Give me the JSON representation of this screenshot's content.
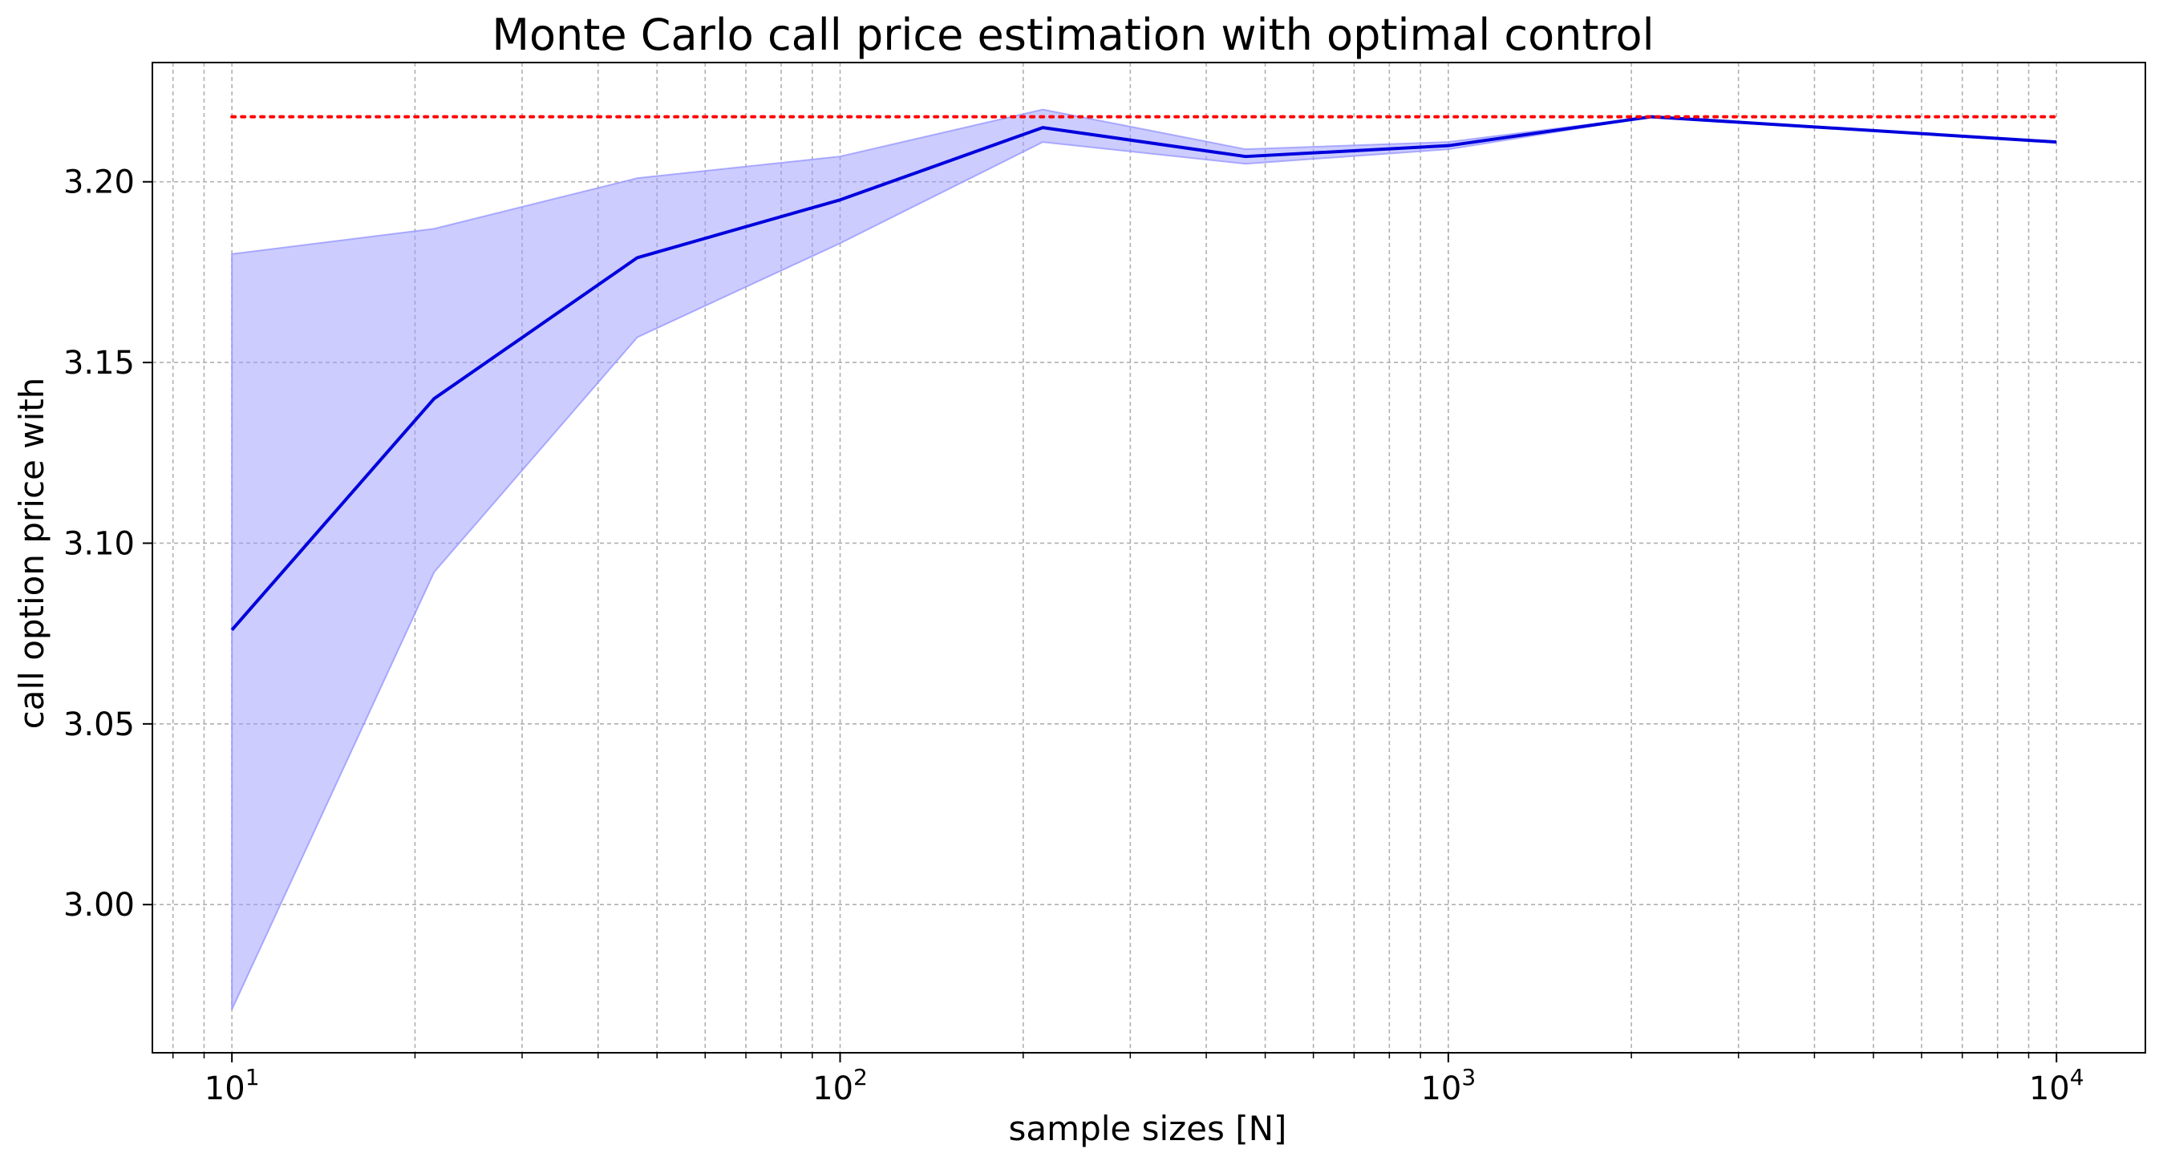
{
  "chart_data": {
    "type": "line",
    "title": "Monte Carlo call price estimation with optimal control",
    "xlabel": "sample sizes [N]",
    "ylabel": "call option price with",
    "x_scale": "log",
    "xlim": [
      7.4,
      14000
    ],
    "ylim": [
      2.959,
      3.233
    ],
    "x_ticks": [
      {
        "value": 10,
        "base": "10",
        "exp": "1"
      },
      {
        "value": 100,
        "base": "10",
        "exp": "2"
      },
      {
        "value": 1000,
        "base": "10",
        "exp": "3"
      },
      {
        "value": 10000,
        "base": "10",
        "exp": "4"
      }
    ],
    "y_ticks": [
      {
        "value": 3.0,
        "label": "3.00"
      },
      {
        "value": 3.05,
        "label": "3.05"
      },
      {
        "value": 3.1,
        "label": "3.10"
      },
      {
        "value": 3.15,
        "label": "3.15"
      },
      {
        "value": 3.2,
        "label": "3.20"
      }
    ],
    "grid": true,
    "grid_minor": true,
    "x": [
      10,
      21.5,
      46.4,
      100,
      215.4,
      464.2,
      1000,
      2154.4,
      10000
    ],
    "series": [
      {
        "values": [
          3.076,
          3.14,
          3.179,
          3.195,
          3.215,
          3.207,
          3.21,
          3.218,
          3.211
        ],
        "color": "#0000dd"
      }
    ],
    "band": {
      "lower": [
        2.971,
        3.092,
        3.157,
        3.183,
        3.211,
        3.205,
        3.209,
        3.218,
        3.211
      ],
      "upper": [
        3.18,
        3.187,
        3.201,
        3.207,
        3.22,
        3.209,
        3.211,
        3.218,
        3.211
      ],
      "color": "#9999ff"
    },
    "reference": {
      "value": 3.218,
      "x_range": [
        10,
        10000
      ],
      "style": "dotted",
      "color": "#ff0000"
    }
  }
}
